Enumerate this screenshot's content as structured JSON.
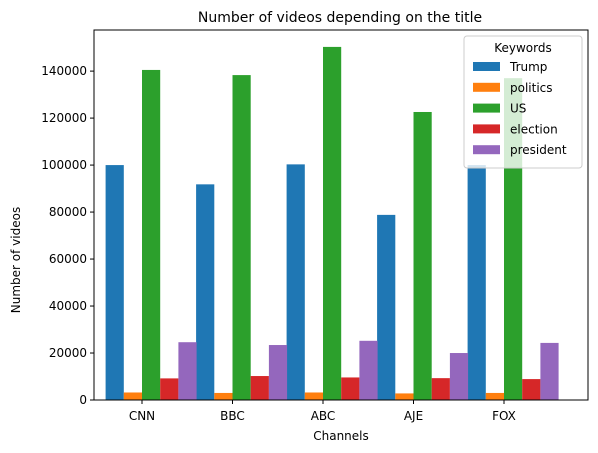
{
  "chart_data": {
    "type": "bar",
    "title": "Number of videos depending on the title",
    "xlabel": "Channels",
    "ylabel": "Number of videos",
    "categories": [
      "CNN",
      "BBC",
      "ABC",
      "AJE",
      "FOX"
    ],
    "ylim": [
      0,
      157500
    ],
    "yticks": [
      0,
      20000,
      40000,
      60000,
      80000,
      100000,
      120000,
      140000
    ],
    "grid": false,
    "legend": {
      "title": "Keywords",
      "placement": "top-right"
    },
    "series": [
      {
        "name": "Trump",
        "color": "#1f77b4",
        "values": [
          100000,
          91800,
          100300,
          78800,
          100000
        ]
      },
      {
        "name": "politics",
        "color": "#ff7f0e",
        "values": [
          3200,
          3000,
          3200,
          2800,
          3000
        ]
      },
      {
        "name": "US",
        "color": "#2ca02c",
        "values": [
          140500,
          138300,
          150300,
          122600,
          137000
        ]
      },
      {
        "name": "election",
        "color": "#d62728",
        "values": [
          9200,
          10200,
          9600,
          9300,
          8900
        ]
      },
      {
        "name": "president",
        "color": "#9467bd",
        "values": [
          24600,
          23400,
          25200,
          20000,
          24300
        ]
      }
    ]
  }
}
